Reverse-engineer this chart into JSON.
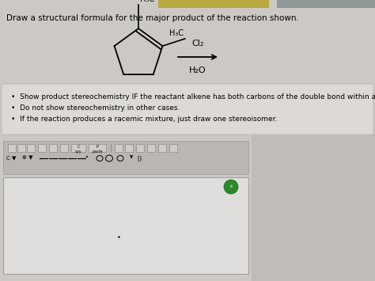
{
  "title": "Draw a structural formula for the major product of the reaction shown.",
  "title_fontsize": 7.5,
  "bg_color": "#ccc9c5",
  "bullet_box_color": "#dddad6",
  "bullet_box_edge": "#b8b5b0",
  "bullet_points": [
    "Show product stereochemistry IF the reactant alkene has both carbons of the double bond within a ring.",
    "Do not show stereochemistry in other cases.",
    "If the reaction produces a racemic mixture, just draw one stereoisomer."
  ],
  "bullet_fontsize": 6.5,
  "reagent_top": "Cl₂",
  "reagent_bottom": "H₂O",
  "top_banner_left_color": "#b8a840",
  "top_banner_right_color": "#a0a8b0",
  "canvas_color": "#e0dedd",
  "canvas_border": "#a0a0a0",
  "green_circle_color": "#2a8a2a"
}
